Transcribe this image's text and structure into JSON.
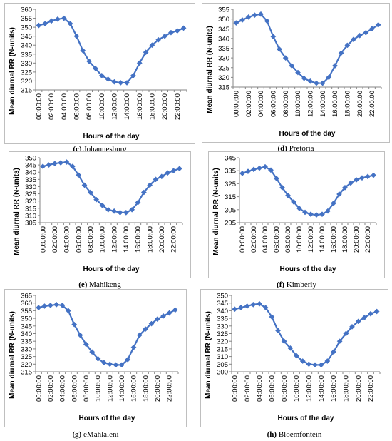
{
  "chart_data": [
    {
      "type": "line",
      "caption_letter": "(c)",
      "caption_name": "Johannesburg",
      "xlabel": "Hours of the day",
      "ylabel": "Mean diurnal RR (N-units)",
      "ylim": [
        315,
        360
      ],
      "ystep": 5,
      "x_ticks": [
        "00:00:00",
        "02:00:00",
        "04:00:00",
        "06:00:00",
        "08:00:00",
        "10:00:00",
        "12:00:00",
        "14:00:00",
        "16:00:00",
        "18:00:00",
        "20:00:00",
        "22:00:00"
      ],
      "x": [
        "00:00",
        "01:00",
        "02:00",
        "03:00",
        "04:00",
        "05:00",
        "06:00",
        "07:00",
        "08:00",
        "09:00",
        "10:00",
        "11:00",
        "12:00",
        "13:00",
        "14:00",
        "15:00",
        "16:00",
        "17:00",
        "18:00",
        "19:00",
        "20:00",
        "21:00",
        "22:00",
        "23:00"
      ],
      "values": [
        351,
        352,
        353.5,
        354.5,
        355,
        352,
        345,
        337,
        331,
        327,
        323,
        321,
        319.5,
        319,
        319,
        323,
        330,
        336,
        340,
        343,
        345,
        347,
        348,
        349.5
      ],
      "color": "#4472C4"
    },
    {
      "type": "line",
      "caption_letter": "(d)",
      "caption_name": "Pretoria",
      "xlabel": "Hours of the day",
      "ylabel": "Mean diurnal RR (N-units)",
      "ylim": [
        315,
        355
      ],
      "ystep": 5,
      "x_ticks": [
        "00:00:00",
        "02:00:00",
        "04:00:00",
        "06:00:00",
        "08:00:00",
        "10:00:00",
        "12:00:00",
        "14:00:00",
        "16:00:00",
        "18:00:00",
        "20:00:00",
        "22:00:00"
      ],
      "x": [
        "00:00",
        "01:00",
        "02:00",
        "03:00",
        "04:00",
        "05:00",
        "06:00",
        "07:00",
        "08:00",
        "09:00",
        "10:00",
        "11:00",
        "12:00",
        "13:00",
        "14:00",
        "15:00",
        "16:00",
        "17:00",
        "18:00",
        "19:00",
        "20:00",
        "21:00",
        "22:00",
        "23:00"
      ],
      "values": [
        348,
        349.5,
        351,
        352,
        352.5,
        349,
        341,
        334.5,
        330,
        326,
        322.5,
        319.5,
        318,
        317,
        317,
        320,
        326,
        332.5,
        336.5,
        339.5,
        341.5,
        343,
        345,
        347
      ],
      "color": "#4472C4"
    },
    {
      "type": "line",
      "caption_letter": "(e)",
      "caption_name": "Mahikeng",
      "xlabel": "Hours of the day",
      "ylabel": "Mean diurnal RR (N-units)",
      "ylim": [
        305,
        350
      ],
      "ystep": 5,
      "x_ticks": [
        "00:00:00",
        "02:00:00",
        "04:00:00",
        "06:00:00",
        "08:00:00",
        "10:00:00",
        "12:00:00",
        "14:00:00",
        "16:00:00",
        "18:00:00",
        "20:00:00",
        "22:00:00"
      ],
      "x": [
        "00:00",
        "01:00",
        "02:00",
        "03:00",
        "04:00",
        "05:00",
        "06:00",
        "07:00",
        "08:00",
        "09:00",
        "10:00",
        "11:00",
        "12:00",
        "13:00",
        "14:00",
        "15:00",
        "16:00",
        "17:00",
        "18:00",
        "19:00",
        "20:00",
        "21:00",
        "22:00",
        "23:00"
      ],
      "values": [
        344,
        345,
        346,
        346.5,
        347,
        344,
        338,
        331,
        326,
        321,
        317,
        314,
        313,
        312,
        312,
        314,
        319,
        326,
        331,
        335,
        337,
        339.5,
        341,
        342.5
      ],
      "color": "#4472C4"
    },
    {
      "type": "line",
      "caption_letter": "(f)",
      "caption_name": "Kimberly",
      "xlabel": "Hours of the day",
      "ylabel": "Mean diurnal RR (N-units)",
      "ylim": [
        295,
        345
      ],
      "ystep": 10,
      "x_ticks": [
        "00:00:00",
        "02:00:00",
        "04:00:00",
        "06:00:00",
        "08:00:00",
        "10:00:00",
        "12:00:00",
        "14:00:00",
        "16:00:00",
        "18:00:00",
        "20:00:00",
        "22:00:00"
      ],
      "x": [
        "00:00",
        "01:00",
        "02:00",
        "03:00",
        "04:00",
        "05:00",
        "06:00",
        "07:00",
        "08:00",
        "09:00",
        "10:00",
        "11:00",
        "12:00",
        "13:00",
        "14:00",
        "15:00",
        "16:00",
        "17:00",
        "18:00",
        "19:00",
        "20:00",
        "21:00",
        "22:00",
        "23:00"
      ],
      "values": [
        333,
        334.5,
        336,
        337,
        338,
        335.5,
        329,
        322,
        316,
        311,
        306,
        303,
        301.5,
        301,
        301.5,
        304,
        310,
        317,
        322,
        325.5,
        328,
        329.5,
        330.5,
        331.5
      ],
      "color": "#4472C4"
    },
    {
      "type": "line",
      "caption_letter": "(g)",
      "caption_name": "eMahlaleni",
      "xlabel": "Hours of the day",
      "ylabel": "Mean diurnal RR (N-units)",
      "ylim": [
        315,
        365
      ],
      "ystep": 5,
      "x_ticks": [
        "00:00:00",
        "02:00:00",
        "04:00:00",
        "06:00:00",
        "08:00:00",
        "10:00:00",
        "12:00:00",
        "14:00:00",
        "16:00:00",
        "18:00:00",
        "20:00:00",
        "22:00:00"
      ],
      "x": [
        "00:00",
        "01:00",
        "02:00",
        "03:00",
        "04:00",
        "05:00",
        "06:00",
        "07:00",
        "08:00",
        "09:00",
        "10:00",
        "11:00",
        "12:00",
        "13:00",
        "14:00",
        "15:00",
        "16:00",
        "17:00",
        "18:00",
        "19:00",
        "20:00",
        "21:00",
        "22:00",
        "23:00"
      ],
      "values": [
        357,
        358,
        358.5,
        359,
        358.5,
        355,
        346,
        339,
        333,
        328,
        323.5,
        321,
        320,
        319.5,
        319.5,
        323,
        331,
        339,
        343,
        346.5,
        349.5,
        351.5,
        353.5,
        355.5
      ],
      "color": "#4472C4"
    },
    {
      "type": "line",
      "caption_letter": "(h)",
      "caption_name": "Bloemfontein",
      "xlabel": "Hours of the day",
      "ylabel": "Mean diurnal RR (N-units)",
      "ylim": [
        300,
        350
      ],
      "ystep": 5,
      "x_ticks": [
        "00:00:00",
        "02:00:00",
        "04:00:00",
        "06:00:00",
        "08:00:00",
        "10:00:00",
        "12:00:00",
        "14:00:00",
        "16:00:00",
        "18:00:00",
        "20:00:00",
        "22:00:00"
      ],
      "x": [
        "00:00",
        "01:00",
        "02:00",
        "03:00",
        "04:00",
        "05:00",
        "06:00",
        "07:00",
        "08:00",
        "09:00",
        "10:00",
        "11:00",
        "12:00",
        "13:00",
        "14:00",
        "15:00",
        "16:00",
        "17:00",
        "18:00",
        "19:00",
        "20:00",
        "21:00",
        "22:00",
        "23:00"
      ],
      "values": [
        341,
        342,
        343,
        344,
        344.5,
        342,
        336,
        327,
        320,
        315.5,
        310.5,
        307,
        305,
        304.5,
        304.5,
        307,
        313,
        320,
        325,
        329.5,
        333,
        335.5,
        338,
        339.5
      ],
      "color": "#4472C4"
    }
  ]
}
